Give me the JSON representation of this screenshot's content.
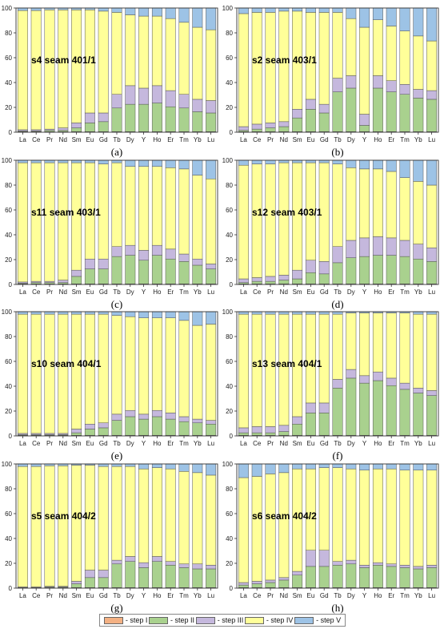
{
  "legend": [
    {
      "label": "- step I",
      "color": "#f4b183"
    },
    {
      "label": "- step II",
      "color": "#a9d18e"
    },
    {
      "label": "- step III",
      "color": "#c5b8dd"
    },
    {
      "label": "- step IV",
      "color": "#ffff99"
    },
    {
      "label": "- step V",
      "color": "#9dc3e6"
    }
  ],
  "chart_data": [
    {
      "type": "bar",
      "stacked": true,
      "letter": "(a)",
      "title": "s4 seam 401/1",
      "categories": [
        "La",
        "Ce",
        "Pr",
        "Nd",
        "Sm",
        "Eu",
        "Gd",
        "Tb",
        "Dy",
        "Y",
        "Ho",
        "Er",
        "Tm",
        "Yb",
        "Lu"
      ],
      "ylim": [
        0,
        100
      ],
      "yticks": [
        0,
        20,
        40,
        60,
        80,
        100
      ],
      "series": [
        {
          "name": "step I",
          "values": [
            0.5,
            0.5,
            0.5,
            0.5,
            0.5,
            0.5,
            0.5,
            0.5,
            0.5,
            0.5,
            0.5,
            0.5,
            0.5,
            0.5,
            0.5
          ]
        },
        {
          "name": "step II",
          "values": [
            0.5,
            0.5,
            1,
            1,
            3,
            7,
            8,
            19,
            22,
            22,
            23,
            20,
            19,
            16,
            15
          ]
        },
        {
          "name": "step III",
          "values": [
            1,
            1,
            1,
            2,
            4,
            8,
            7,
            11,
            15,
            13,
            14,
            13,
            11,
            10,
            10
          ]
        },
        {
          "name": "step IV",
          "values": [
            96,
            96,
            96,
            95,
            91,
            83,
            82,
            66,
            57,
            58,
            56,
            58,
            58,
            58,
            57
          ]
        },
        {
          "name": "step V",
          "values": [
            2,
            2,
            1.5,
            1.5,
            1.5,
            1.5,
            2.5,
            3.5,
            5.5,
            6.5,
            6.5,
            8.5,
            11.5,
            15.5,
            17.5
          ]
        }
      ]
    },
    {
      "type": "bar",
      "stacked": true,
      "letter": "(b)",
      "title": "s2 seam 403/1",
      "categories": [
        "La",
        "Ce",
        "Pr",
        "Nd",
        "Sm",
        "Eu",
        "Gd",
        "Tb",
        "Dy",
        "Y",
        "Ho",
        "Er",
        "Tm",
        "Yb",
        "Lu"
      ],
      "ylim": [
        0,
        100
      ],
      "yticks": [
        0,
        20,
        40,
        60,
        80,
        100
      ],
      "series": [
        {
          "name": "step I",
          "values": [
            0.5,
            0.5,
            0.5,
            0.5,
            0.5,
            0.5,
            0.5,
            0.5,
            0.5,
            0.5,
            0.5,
            0.5,
            0.5,
            0.5,
            0.5
          ]
        },
        {
          "name": "step II",
          "values": [
            1,
            2,
            3,
            4,
            11,
            18,
            15,
            32,
            35,
            5,
            35,
            32,
            30,
            27,
            26
          ]
        },
        {
          "name": "step III",
          "values": [
            3,
            4,
            4,
            4,
            7,
            8,
            7,
            11,
            10,
            9,
            10,
            9,
            8,
            7,
            7
          ]
        },
        {
          "name": "step IV",
          "values": [
            91,
            90,
            89,
            89,
            79,
            70,
            74,
            53,
            46,
            70,
            45,
            44,
            43,
            43,
            40
          ]
        },
        {
          "name": "step V",
          "values": [
            4.5,
            3.5,
            3.5,
            2.5,
            2.5,
            3.5,
            3.5,
            3.5,
            8.5,
            15.5,
            9.5,
            14.5,
            18.5,
            22.5,
            26.5
          ]
        }
      ]
    },
    {
      "type": "bar",
      "stacked": true,
      "letter": "(c)",
      "title": "s11 seam 403/1",
      "categories": [
        "La",
        "Ce",
        "Pr",
        "Nd",
        "Sm",
        "Eu",
        "Gd",
        "Tb",
        "Dy",
        "Y",
        "Ho",
        "Er",
        "Tm",
        "Yb",
        "Lu"
      ],
      "ylim": [
        0,
        100
      ],
      "yticks": [
        0,
        20,
        40,
        60,
        80,
        100
      ],
      "series": [
        {
          "name": "step I",
          "values": [
            0.5,
            0.5,
            0.5,
            0.5,
            0.5,
            0.5,
            0.5,
            0.5,
            0.5,
            0.5,
            0.5,
            0.5,
            0.5,
            0.5,
            0.5
          ]
        },
        {
          "name": "step II",
          "values": [
            0.5,
            1,
            1,
            1,
            6,
            12,
            12,
            22,
            23,
            19,
            23,
            20,
            18,
            15,
            12
          ]
        },
        {
          "name": "step III",
          "values": [
            1,
            1,
            1,
            2,
            5,
            8,
            8,
            8,
            8,
            8,
            8,
            8,
            6,
            5,
            4
          ]
        },
        {
          "name": "step IV",
          "values": [
            96,
            95.5,
            95.5,
            94.5,
            86.5,
            77.5,
            76.5,
            67.5,
            63.5,
            67.5,
            63.5,
            65.5,
            68.5,
            67.5,
            68.5
          ]
        },
        {
          "name": "step V",
          "values": [
            2,
            2,
            2,
            2,
            2,
            2,
            3,
            2,
            5,
            5,
            5,
            6,
            7,
            12,
            15
          ]
        }
      ]
    },
    {
      "type": "bar",
      "stacked": true,
      "letter": "(d)",
      "title": "s12 seam 403/1",
      "categories": [
        "La",
        "Ce",
        "Pr",
        "Nd",
        "Sm",
        "Eu",
        "Gd",
        "Tb",
        "Dy",
        "Y",
        "Ho",
        "Er",
        "Tm",
        "Yb",
        "Lu"
      ],
      "ylim": [
        0,
        100
      ],
      "yticks": [
        0,
        20,
        40,
        60,
        80,
        100
      ],
      "series": [
        {
          "name": "step I",
          "values": [
            0.5,
            0.5,
            0.5,
            0.5,
            0.5,
            0.5,
            0.5,
            0.5,
            0.5,
            0.5,
            0.5,
            0.5,
            0.5,
            0.5,
            0.5
          ]
        },
        {
          "name": "step II",
          "values": [
            1,
            2,
            2,
            3,
            4,
            9,
            8,
            17,
            21,
            22,
            23,
            23,
            22,
            20,
            18
          ]
        },
        {
          "name": "step III",
          "values": [
            3,
            3,
            4,
            4,
            7,
            10,
            10,
            13,
            14,
            15,
            15,
            14,
            13,
            12,
            11
          ]
        },
        {
          "name": "step IV",
          "values": [
            91.5,
            91.5,
            90.5,
            90.5,
            86.5,
            78.5,
            79.5,
            66.5,
            58.5,
            55.5,
            54.5,
            53.5,
            50.5,
            50.5,
            50.5
          ]
        },
        {
          "name": "step V",
          "values": [
            4,
            3,
            3,
            2,
            2,
            2,
            2,
            3,
            6,
            7,
            7,
            9,
            14,
            17,
            20
          ]
        }
      ]
    },
    {
      "type": "bar",
      "stacked": true,
      "letter": "(e)",
      "title": "s10 seam 404/1",
      "categories": [
        "La",
        "Ce",
        "Pr",
        "Nd",
        "Sm",
        "Eu",
        "Gd",
        "Tb",
        "Dy",
        "Y",
        "Ho",
        "Er",
        "Tm",
        "Yb",
        "Lu"
      ],
      "ylim": [
        0,
        100
      ],
      "yticks": [
        0,
        20,
        40,
        60,
        80,
        100
      ],
      "series": [
        {
          "name": "step I",
          "values": [
            0.5,
            0.5,
            0.5,
            0.5,
            0.5,
            0.5,
            0.5,
            0.5,
            0.5,
            0.5,
            0.5,
            0.5,
            0.5,
            0.5,
            0.5
          ]
        },
        {
          "name": "step II",
          "values": [
            0.5,
            0.5,
            0.5,
            0.5,
            2,
            5,
            6,
            12,
            15,
            13,
            15,
            13,
            11,
            10,
            9
          ]
        },
        {
          "name": "step III",
          "values": [
            1,
            1,
            1,
            1,
            3,
            4,
            4,
            5,
            5,
            4,
            5,
            5,
            4,
            3,
            3
          ]
        },
        {
          "name": "step IV",
          "values": [
            96,
            96,
            96,
            96,
            92.5,
            88.5,
            87.5,
            79.5,
            75.5,
            77.5,
            74.5,
            76.5,
            77.5,
            75.5,
            77.5
          ]
        },
        {
          "name": "step V",
          "values": [
            2,
            2,
            2,
            2,
            2,
            2,
            2,
            3,
            4,
            5,
            5,
            5,
            7,
            11,
            10
          ]
        }
      ]
    },
    {
      "type": "bar",
      "stacked": true,
      "letter": "(f)",
      "title": "s13 seam 404/1",
      "categories": [
        "La",
        "Ce",
        "Pr",
        "Nd",
        "Sm",
        "Eu",
        "Gd",
        "Tb",
        "Dy",
        "Y",
        "Ho",
        "Er",
        "Tm",
        "Yb",
        "Lu"
      ],
      "ylim": [
        0,
        100
      ],
      "yticks": [
        0,
        20,
        40,
        60,
        80,
        100
      ],
      "series": [
        {
          "name": "step I",
          "values": [
            0.5,
            0.5,
            0.5,
            0.5,
            0.5,
            0.5,
            0.5,
            0.5,
            0.5,
            0.5,
            0.5,
            0.5,
            0.5,
            0.5,
            0.5
          ]
        },
        {
          "name": "step II",
          "values": [
            2,
            2,
            2,
            3,
            9,
            18,
            18,
            38,
            46,
            42,
            44,
            40,
            37,
            34,
            32
          ]
        },
        {
          "name": "step III",
          "values": [
            4,
            5,
            5,
            5,
            6,
            8,
            8,
            7,
            7,
            6,
            7,
            6,
            5,
            4,
            4
          ]
        },
        {
          "name": "step IV",
          "values": [
            91.5,
            90.5,
            90.5,
            89.5,
            82.5,
            71.5,
            71.5,
            52.5,
            45.5,
            50.5,
            47.5,
            52.5,
            56.5,
            59.5,
            61.5
          ]
        },
        {
          "name": "step V",
          "values": [
            2,
            2,
            2,
            2,
            2,
            2,
            2,
            2,
            1,
            1,
            1,
            1,
            1,
            2,
            2
          ]
        }
      ]
    },
    {
      "type": "bar",
      "stacked": true,
      "letter": "(g)",
      "title": "s5 seam 404/2",
      "categories": [
        "La",
        "Ce",
        "Pr",
        "Nd",
        "Sm",
        "Eu",
        "Gd",
        "Tb",
        "Dy",
        "Y",
        "Ho",
        "Er",
        "Tm",
        "Yb",
        "Lu"
      ],
      "ylim": [
        0,
        100
      ],
      "yticks": [
        0,
        20,
        40,
        60,
        80,
        100
      ],
      "series": [
        {
          "name": "step I",
          "values": [
            0.5,
            0.5,
            0.5,
            0.5,
            0.5,
            0.5,
            0.5,
            0.5,
            0.5,
            0.5,
            0.5,
            0.5,
            0.5,
            0.5,
            0.5
          ]
        },
        {
          "name": "step II",
          "values": [
            0,
            0,
            0.5,
            0.5,
            3,
            8,
            8,
            19,
            21,
            16,
            21,
            18,
            16,
            15,
            15
          ]
        },
        {
          "name": "step III",
          "values": [
            0.5,
            0.5,
            0.5,
            0.5,
            2,
            6,
            6,
            3,
            4,
            4,
            4,
            3,
            3,
            4,
            3
          ]
        },
        {
          "name": "step IV",
          "values": [
            97,
            97,
            97,
            97,
            93.5,
            84.5,
            83.5,
            75.5,
            72.5,
            75.5,
            71.5,
            74.5,
            74.5,
            73.5,
            72.5
          ]
        },
        {
          "name": "step V",
          "values": [
            2,
            2,
            1.5,
            1.5,
            1,
            1,
            2,
            2,
            2,
            4,
            3,
            4,
            6,
            7,
            9
          ]
        }
      ]
    },
    {
      "type": "bar",
      "stacked": true,
      "letter": "(h)",
      "title": "s6 seam 404/2",
      "categories": [
        "La",
        "Ce",
        "Pr",
        "Nd",
        "Sm",
        "Eu",
        "Gd",
        "Tb",
        "Dy",
        "Y",
        "Ho",
        "Er",
        "Tm",
        "Yb",
        "Lu"
      ],
      "ylim": [
        0,
        100
      ],
      "yticks": [
        0,
        20,
        40,
        60,
        80,
        100
      ],
      "series": [
        {
          "name": "step I",
          "values": [
            0.5,
            0.5,
            0.5,
            0.5,
            0.5,
            0.5,
            0.5,
            0.5,
            0.5,
            0.5,
            0.5,
            0.5,
            0.5,
            0.5,
            0.5
          ]
        },
        {
          "name": "step II",
          "values": [
            2,
            3,
            4,
            6,
            10,
            17,
            17,
            18,
            19,
            16,
            18,
            17,
            16,
            15,
            16
          ]
        },
        {
          "name": "step III",
          "values": [
            2,
            2,
            2,
            2,
            3,
            13,
            13,
            3,
            3,
            2,
            2,
            2,
            2,
            2,
            2
          ]
        },
        {
          "name": "step IV",
          "values": [
            84.5,
            84.5,
            85.5,
            84.5,
            82.5,
            65.5,
            66.5,
            75.5,
            73.5,
            76.5,
            75.5,
            76.5,
            76.5,
            77.5,
            76.5
          ]
        },
        {
          "name": "step V",
          "values": [
            11,
            10,
            8,
            7,
            4,
            4,
            3,
            3,
            4,
            5,
            4,
            4,
            5,
            5,
            5
          ]
        }
      ]
    }
  ]
}
